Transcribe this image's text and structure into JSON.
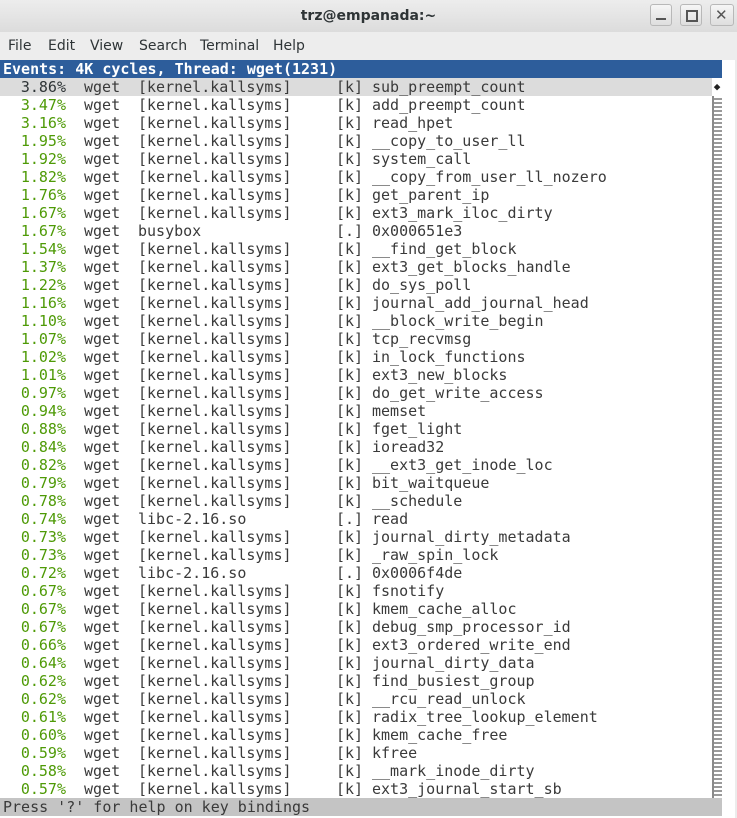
{
  "window": {
    "title": "trz@empanada:~"
  },
  "menu": [
    "File",
    "Edit",
    "View",
    "Search",
    "Terminal",
    "Help"
  ],
  "terminal": {
    "header": "Events: 4K cycles, Thread: wget(1231)",
    "rows": [
      [
        "3.86%",
        "wget",
        "[kernel.kallsyms]",
        "[k]",
        "sub_preempt_count"
      ],
      [
        "3.47%",
        "wget",
        "[kernel.kallsyms]",
        "[k]",
        "add_preempt_count"
      ],
      [
        "3.16%",
        "wget",
        "[kernel.kallsyms]",
        "[k]",
        "read_hpet"
      ],
      [
        "1.95%",
        "wget",
        "[kernel.kallsyms]",
        "[k]",
        "__copy_to_user_ll"
      ],
      [
        "1.92%",
        "wget",
        "[kernel.kallsyms]",
        "[k]",
        "system_call"
      ],
      [
        "1.82%",
        "wget",
        "[kernel.kallsyms]",
        "[k]",
        "__copy_from_user_ll_nozero"
      ],
      [
        "1.76%",
        "wget",
        "[kernel.kallsyms]",
        "[k]",
        "get_parent_ip"
      ],
      [
        "1.67%",
        "wget",
        "[kernel.kallsyms]",
        "[k]",
        "ext3_mark_iloc_dirty"
      ],
      [
        "1.67%",
        "wget",
        "busybox",
        "[.]",
        "0x000651e3"
      ],
      [
        "1.54%",
        "wget",
        "[kernel.kallsyms]",
        "[k]",
        "__find_get_block"
      ],
      [
        "1.37%",
        "wget",
        "[kernel.kallsyms]",
        "[k]",
        "ext3_get_blocks_handle"
      ],
      [
        "1.22%",
        "wget",
        "[kernel.kallsyms]",
        "[k]",
        "do_sys_poll"
      ],
      [
        "1.16%",
        "wget",
        "[kernel.kallsyms]",
        "[k]",
        "journal_add_journal_head"
      ],
      [
        "1.10%",
        "wget",
        "[kernel.kallsyms]",
        "[k]",
        "__block_write_begin"
      ],
      [
        "1.07%",
        "wget",
        "[kernel.kallsyms]",
        "[k]",
        "tcp_recvmsg"
      ],
      [
        "1.02%",
        "wget",
        "[kernel.kallsyms]",
        "[k]",
        "in_lock_functions"
      ],
      [
        "1.01%",
        "wget",
        "[kernel.kallsyms]",
        "[k]",
        "ext3_new_blocks"
      ],
      [
        "0.97%",
        "wget",
        "[kernel.kallsyms]",
        "[k]",
        "do_get_write_access"
      ],
      [
        "0.94%",
        "wget",
        "[kernel.kallsyms]",
        "[k]",
        "memset"
      ],
      [
        "0.88%",
        "wget",
        "[kernel.kallsyms]",
        "[k]",
        "fget_light"
      ],
      [
        "0.84%",
        "wget",
        "[kernel.kallsyms]",
        "[k]",
        "ioread32"
      ],
      [
        "0.82%",
        "wget",
        "[kernel.kallsyms]",
        "[k]",
        "__ext3_get_inode_loc"
      ],
      [
        "0.79%",
        "wget",
        "[kernel.kallsyms]",
        "[k]",
        "bit_waitqueue"
      ],
      [
        "0.78%",
        "wget",
        "[kernel.kallsyms]",
        "[k]",
        "__schedule"
      ],
      [
        "0.74%",
        "wget",
        "libc-2.16.so",
        "[.]",
        "read"
      ],
      [
        "0.73%",
        "wget",
        "[kernel.kallsyms]",
        "[k]",
        "journal_dirty_metadata"
      ],
      [
        "0.73%",
        "wget",
        "[kernel.kallsyms]",
        "[k]",
        "_raw_spin_lock"
      ],
      [
        "0.72%",
        "wget",
        "libc-2.16.so",
        "[.]",
        "0x0006f4de"
      ],
      [
        "0.67%",
        "wget",
        "[kernel.kallsyms]",
        "[k]",
        "fsnotify"
      ],
      [
        "0.67%",
        "wget",
        "[kernel.kallsyms]",
        "[k]",
        "kmem_cache_alloc"
      ],
      [
        "0.67%",
        "wget",
        "[kernel.kallsyms]",
        "[k]",
        "debug_smp_processor_id"
      ],
      [
        "0.66%",
        "wget",
        "[kernel.kallsyms]",
        "[k]",
        "ext3_ordered_write_end"
      ],
      [
        "0.64%",
        "wget",
        "[kernel.kallsyms]",
        "[k]",
        "journal_dirty_data"
      ],
      [
        "0.62%",
        "wget",
        "[kernel.kallsyms]",
        "[k]",
        "find_busiest_group"
      ],
      [
        "0.62%",
        "wget",
        "[kernel.kallsyms]",
        "[k]",
        "__rcu_read_unlock"
      ],
      [
        "0.61%",
        "wget",
        "[kernel.kallsyms]",
        "[k]",
        "radix_tree_lookup_element"
      ],
      [
        "0.60%",
        "wget",
        "[kernel.kallsyms]",
        "[k]",
        "kmem_cache_free"
      ],
      [
        "0.59%",
        "wget",
        "[kernel.kallsyms]",
        "[k]",
        "kfree"
      ],
      [
        "0.58%",
        "wget",
        "[kernel.kallsyms]",
        "[k]",
        "__mark_inode_dirty"
      ],
      [
        "0.57%",
        "wget",
        "[kernel.kallsyms]",
        "[k]",
        "ext3_journal_start_sb"
      ]
    ],
    "status": "Press '?' for help on key bindings"
  }
}
